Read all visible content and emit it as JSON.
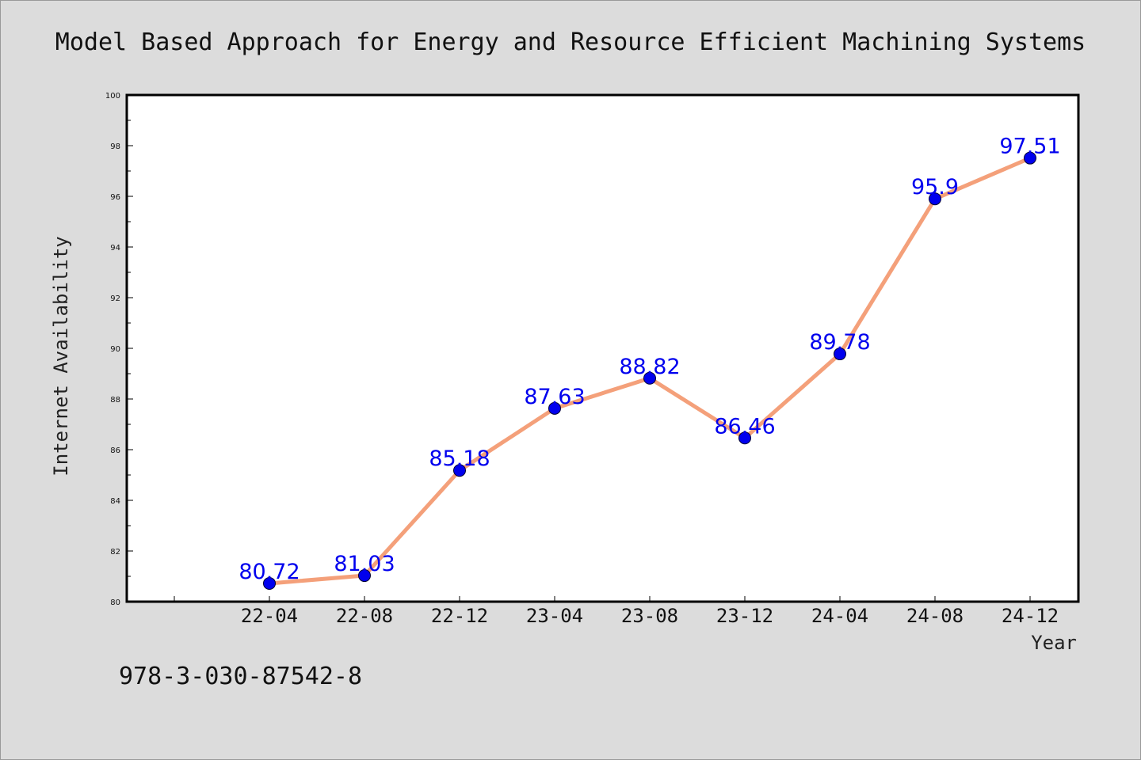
{
  "chart_data": {
    "type": "line",
    "title": "Model Based Approach for Energy and Resource Efficient Machining Systems",
    "xlabel": "Year",
    "ylabel": "Internet Availability",
    "categories": [
      "22-04",
      "22-08",
      "22-12",
      "23-04",
      "23-08",
      "23-12",
      "24-04",
      "24-08",
      "24-12"
    ],
    "series": [
      {
        "values": [
          80.72,
          81.03,
          85.18,
          87.63,
          88.82,
          86.46,
          89.78,
          95.9,
          97.51
        ]
      }
    ],
    "data_labels": [
      "80.72",
      "81.03",
      "85.18",
      "87.63",
      "88.82",
      "86.46",
      "89.78",
      "95.9",
      "97.51"
    ],
    "ylim": [
      80,
      100
    ],
    "yticks": [
      "80",
      "82",
      "84",
      "86",
      "88",
      "90",
      "92",
      "94",
      "96",
      "98",
      "100"
    ],
    "grid": false,
    "legend": "none",
    "colors": {
      "line": "#f4a07a",
      "marker": "#0000ee",
      "data_label": "#0000ee",
      "background": "#dcdcdc",
      "plot_background": "#ffffff"
    }
  },
  "footer_text": "978-3-030-87542-8"
}
